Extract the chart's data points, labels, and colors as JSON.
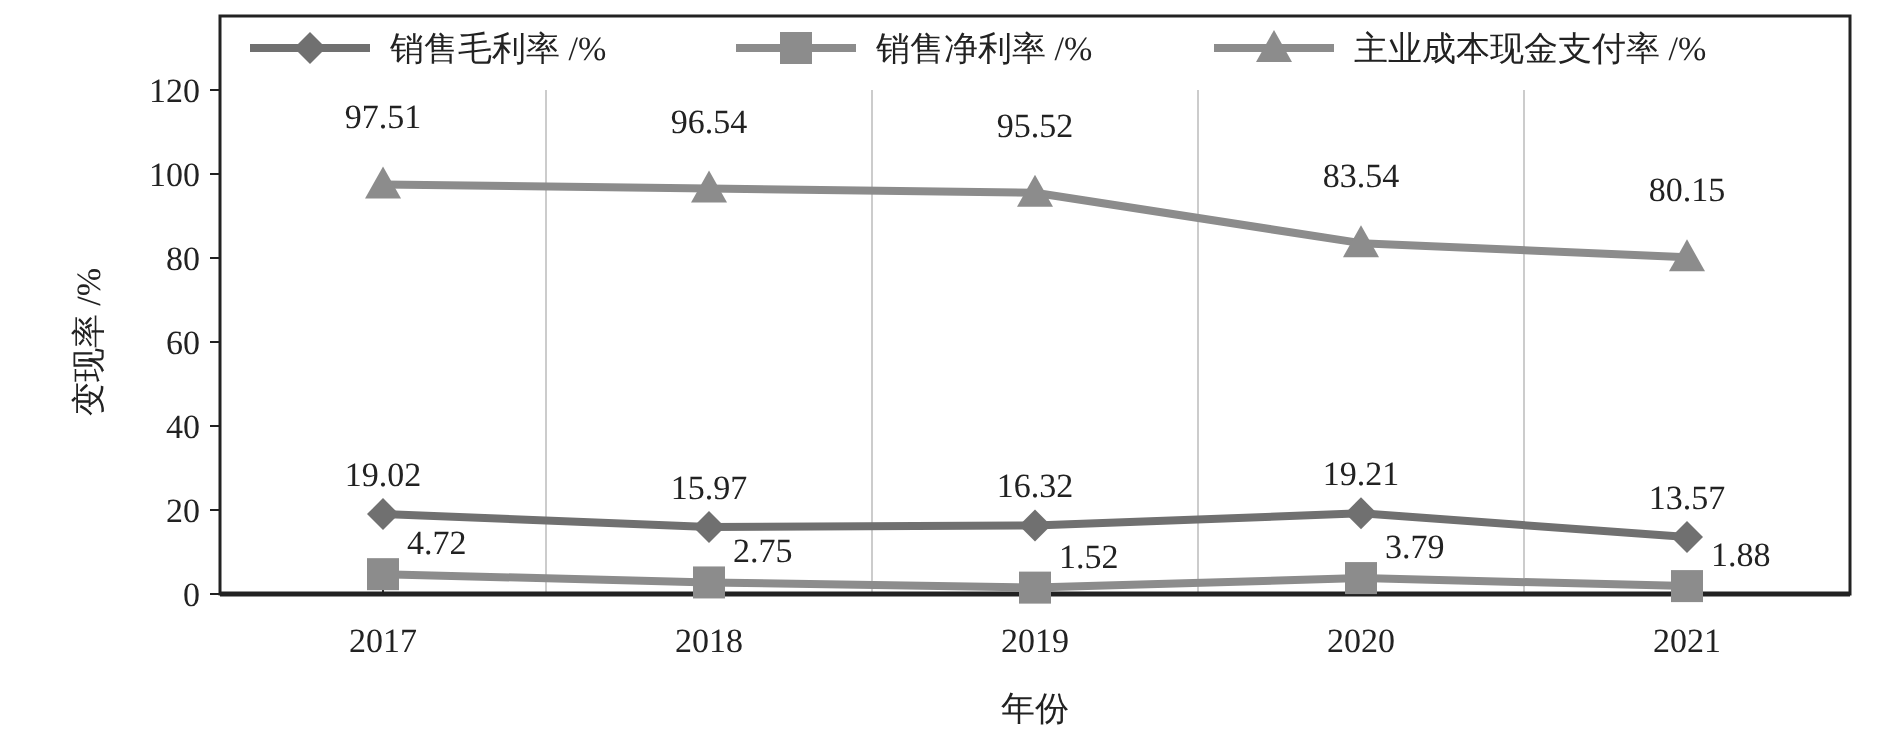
{
  "chart_data": {
    "type": "line",
    "xlabel": "年份",
    "ylabel": "变现率 /%",
    "categories": [
      "2017",
      "2018",
      "2019",
      "2020",
      "2021"
    ],
    "ylim": [
      0,
      120
    ],
    "yticks": [
      0,
      20,
      40,
      60,
      80,
      100,
      120
    ],
    "grid": "x",
    "legend": "top",
    "data_labels": true,
    "line_style": "solid",
    "series": [
      {
        "name": "销售毛利率 /%",
        "color": "#707070",
        "marker": "diamond",
        "values": [
          19.02,
          15.97,
          16.32,
          19.21,
          13.57
        ]
      },
      {
        "name": "销售净利率 /%",
        "color": "#8c8c8c",
        "marker": "square",
        "values": [
          4.72,
          2.75,
          1.52,
          3.79,
          1.88
        ]
      },
      {
        "name": "主业成本现金支付率 /%",
        "color": "#8c8c8c",
        "marker": "triangle",
        "values": [
          97.51,
          96.54,
          95.52,
          83.54,
          80.15
        ]
      }
    ]
  }
}
